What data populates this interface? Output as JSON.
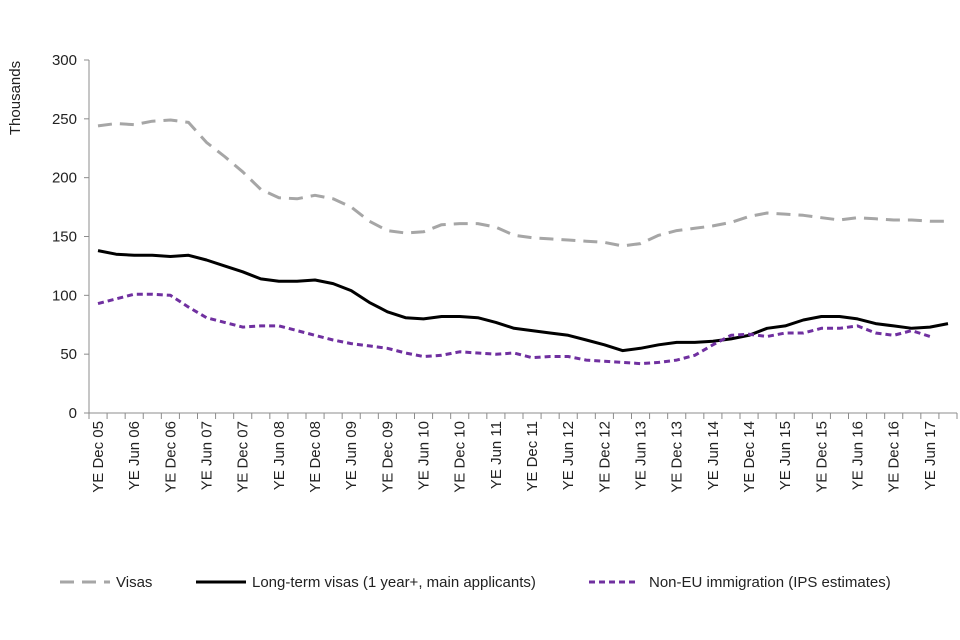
{
  "chart_data": {
    "type": "line",
    "title": "",
    "ylabel": "Thousands",
    "xlabel": "",
    "ylim": [
      0,
      300
    ],
    "yticks": [
      0,
      50,
      100,
      150,
      200,
      250,
      300
    ],
    "grid": false,
    "legend_position": "bottom",
    "x_tick_labels": [
      "YE Dec 05",
      "YE Jun 06",
      "YE Dec 06",
      "YE Jun 07",
      "YE Dec 07",
      "YE Jun 08",
      "YE Dec 08",
      "YE Jun 09",
      "YE Dec 09",
      "YE Jun 10",
      "YE Dec 10",
      "YE Jun 11",
      "YE Dec 11",
      "YE Jun 12",
      "YE Dec 12",
      "YE Jun 13",
      "YE Dec 13",
      "YE Jun 14",
      "YE Dec 14",
      "YE Jun 15",
      "YE Dec 15",
      "YE Jun 16",
      "YE Dec 16",
      "YE Jun 17"
    ],
    "x_points_per_label": 2,
    "x_points_total": 48,
    "series": [
      {
        "name": "Visas",
        "color": "#a6a6a6",
        "style": "long-dash",
        "values": [
          244,
          246,
          245,
          248,
          249,
          247,
          230,
          218,
          205,
          190,
          183,
          182,
          185,
          182,
          175,
          163,
          155,
          153,
          154,
          160,
          161,
          161,
          158,
          151,
          149,
          148,
          147,
          146,
          145,
          142,
          144,
          151,
          155,
          157,
          159,
          162,
          167,
          170,
          169,
          168,
          166,
          164,
          166,
          165,
          164,
          164,
          163,
          163
        ]
      },
      {
        "name": "Long-term visas (1 year+, main applicants)",
        "color": "#000000",
        "style": "solid",
        "values": [
          138,
          135,
          134,
          134,
          133,
          134,
          130,
          125,
          120,
          114,
          112,
          112,
          113,
          110,
          104,
          94,
          86,
          81,
          80,
          82,
          82,
          81,
          77,
          72,
          70,
          68,
          66,
          62,
          58,
          53,
          55,
          58,
          60,
          60,
          61,
          63,
          66,
          72,
          74,
          79,
          82,
          82,
          80,
          76,
          74,
          72,
          73,
          76
        ]
      },
      {
        "name": "Non-EU immigration (IPS estimates)",
        "color": "#7030a0",
        "style": "short-dash",
        "values": [
          93,
          97,
          101,
          101,
          100,
          90,
          81,
          77,
          73,
          74,
          74,
          70,
          66,
          62,
          59,
          57,
          55,
          51,
          48,
          49,
          52,
          51,
          50,
          51,
          47,
          48,
          48,
          45,
          44,
          43,
          42,
          43,
          45,
          49,
          58,
          66,
          67,
          65,
          68,
          68,
          72,
          72,
          74,
          68,
          66,
          70,
          65
        ]
      }
    ]
  }
}
